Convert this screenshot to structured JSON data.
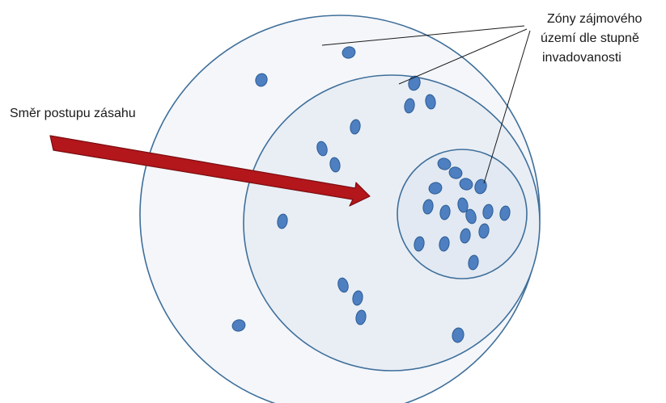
{
  "diagram": {
    "direction_label": "Směr postupu zásahu",
    "zones_label_lines": [
      "Zóny zájmového",
      "území dle stupně",
      "invadovanosti"
    ],
    "colors": {
      "outline": "#3f6f9a",
      "outer_zone_fill": "#f4f6fa",
      "middle_zone_fill": "#e9eef5",
      "inner_zone_fill": "#e2e9f2",
      "dot_fill": "#4d7fc1",
      "dot_stroke": "#2d5d93",
      "arrow_fill": "#b3161b",
      "arrow_stroke": "#7a0d10",
      "leader_line": "#1a1a1a"
    },
    "zones": [
      "outer-zone",
      "middle-zone",
      "inner-zone"
    ],
    "dot_counts": {
      "outer_zone": 5,
      "middle_zone": 13,
      "inner_zone": 19
    }
  }
}
